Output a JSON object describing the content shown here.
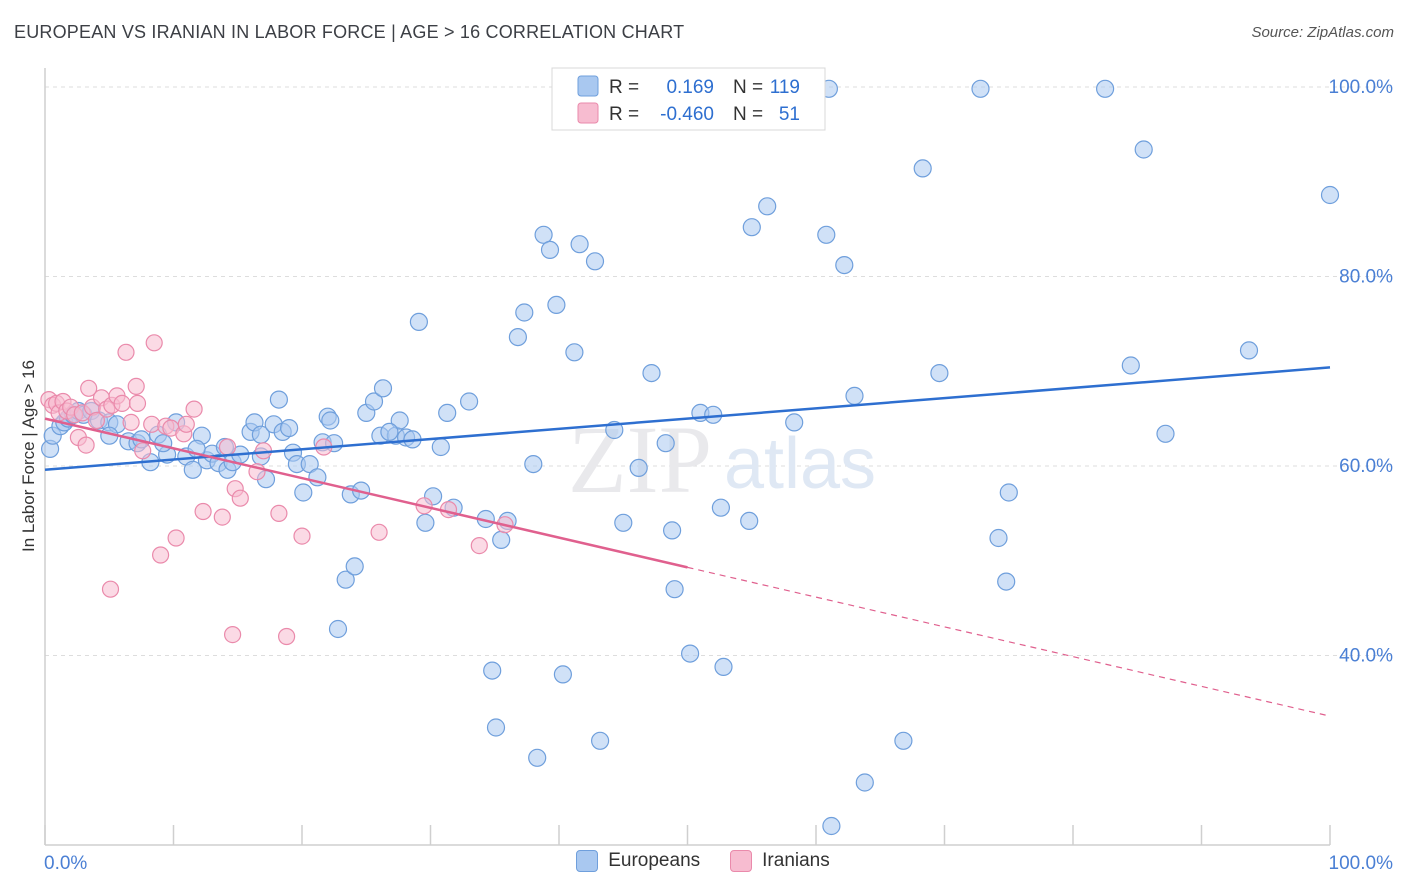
{
  "header": {
    "title": "EUROPEAN VS IRANIAN IN LABOR FORCE | AGE > 16 CORRELATION CHART",
    "source": "Source: ZipAtlas.com"
  },
  "watermark": {
    "zip": "ZIP",
    "atlas": "atlas"
  },
  "colors": {
    "blue_fill": "#a9c8f0",
    "blue_stroke": "#6f9fdc",
    "blue_line": "#2e6fd0",
    "pink_fill": "#f7bcd0",
    "pink_stroke": "#ea8aab",
    "pink_line": "#e0608e",
    "axis_label": "#4a7fd4",
    "grid": "#dddddd"
  },
  "legend_top": {
    "rows": [
      {
        "r_label": "R =",
        "r_value": "0.169",
        "n_label": "N =",
        "n_value": "119"
      },
      {
        "r_label": "R =",
        "r_value": "-0.460",
        "n_label": "N =",
        "n_value": "51"
      }
    ]
  },
  "legend_bottom": {
    "items": [
      "Europeans",
      "Iranians"
    ]
  },
  "chart_data": {
    "type": "scatter",
    "title": "EUROPEAN VS IRANIAN IN LABOR FORCE | AGE > 16 CORRELATION CHART",
    "xlabel": "",
    "ylabel": "In Labor Force | Age > 16",
    "xlim": [
      0,
      100
    ],
    "ylim": [
      20,
      102
    ],
    "x_tick_labels": [
      "0.0%",
      "100.0%"
    ],
    "y_ticks": [
      40,
      60,
      80,
      100
    ],
    "y_tick_labels": [
      "40.0%",
      "60.0%",
      "80.0%",
      "100.0%"
    ],
    "series": [
      {
        "name": "Europeans",
        "R": 0.169,
        "N": 119,
        "trend": {
          "x": [
            0,
            100
          ],
          "y": [
            59.6,
            70.4
          ],
          "dashed_from": null
        },
        "points": [
          [
            0.4,
            61.8
          ],
          [
            0.6,
            63.2
          ],
          [
            1.2,
            64.2
          ],
          [
            1.5,
            64.6
          ],
          [
            1.8,
            65.0
          ],
          [
            2.2,
            65.4
          ],
          [
            2.6,
            65.8
          ],
          [
            3.0,
            65.4
          ],
          [
            3.6,
            65.8
          ],
          [
            4.2,
            64.8
          ],
          [
            5.0,
            64.6
          ],
          [
            5.6,
            64.4
          ],
          [
            6.5,
            62.6
          ],
          [
            7.2,
            62.4
          ],
          [
            8.2,
            60.4
          ],
          [
            8.8,
            63.3
          ],
          [
            9.5,
            61.2
          ],
          [
            10.2,
            64.6
          ],
          [
            11.0,
            61.0
          ],
          [
            11.5,
            59.6
          ],
          [
            12.2,
            63.2
          ],
          [
            12.6,
            60.6
          ],
          [
            13.0,
            61.3
          ],
          [
            13.5,
            60.3
          ],
          [
            14.2,
            59.6
          ],
          [
            14.6,
            60.4
          ],
          [
            15.2,
            61.2
          ],
          [
            16.0,
            63.6
          ],
          [
            16.3,
            64.6
          ],
          [
            16.8,
            63.3
          ],
          [
            17.2,
            58.6
          ],
          [
            17.8,
            64.4
          ],
          [
            18.5,
            63.6
          ],
          [
            18.2,
            67.0
          ],
          [
            19.3,
            61.4
          ],
          [
            19.6,
            60.2
          ],
          [
            20.1,
            57.2
          ],
          [
            20.6,
            60.2
          ],
          [
            21.2,
            58.8
          ],
          [
            21.6,
            62.5
          ],
          [
            22.0,
            65.2
          ],
          [
            22.5,
            62.4
          ],
          [
            22.8,
            42.8
          ],
          [
            23.4,
            48.0
          ],
          [
            23.8,
            57.0
          ],
          [
            24.1,
            49.4
          ],
          [
            24.6,
            57.4
          ],
          [
            25.0,
            65.6
          ],
          [
            25.6,
            66.8
          ],
          [
            26.1,
            63.2
          ],
          [
            26.3,
            68.2
          ],
          [
            27.3,
            63.2
          ],
          [
            27.6,
            64.8
          ],
          [
            28.1,
            63.0
          ],
          [
            28.6,
            62.8
          ],
          [
            29.1,
            75.2
          ],
          [
            29.6,
            54.0
          ],
          [
            30.2,
            56.8
          ],
          [
            30.8,
            62.0
          ],
          [
            31.3,
            65.6
          ],
          [
            31.8,
            55.6
          ],
          [
            33.0,
            66.8
          ],
          [
            34.3,
            54.4
          ],
          [
            34.8,
            38.4
          ],
          [
            35.1,
            32.4
          ],
          [
            35.5,
            52.2
          ],
          [
            36.0,
            54.2
          ],
          [
            36.8,
            73.6
          ],
          [
            37.3,
            76.2
          ],
          [
            38.0,
            60.2
          ],
          [
            38.3,
            29.2
          ],
          [
            38.8,
            84.4
          ],
          [
            39.3,
            82.8
          ],
          [
            39.8,
            77.0
          ],
          [
            40.3,
            38.0
          ],
          [
            41.2,
            72.0
          ],
          [
            41.6,
            83.4
          ],
          [
            42.8,
            81.6
          ],
          [
            43.2,
            31.0
          ],
          [
            44.3,
            63.8
          ],
          [
            45.0,
            54.0
          ],
          [
            46.2,
            59.8
          ],
          [
            47.2,
            69.8
          ],
          [
            48.3,
            62.4
          ],
          [
            48.8,
            53.2
          ],
          [
            49.0,
            47.0
          ],
          [
            50.2,
            40.2
          ],
          [
            51.0,
            65.6
          ],
          [
            52.0,
            65.4
          ],
          [
            52.6,
            55.6
          ],
          [
            52.8,
            38.8
          ],
          [
            54.8,
            54.2
          ],
          [
            55.0,
            85.2
          ],
          [
            56.2,
            87.4
          ],
          [
            58.3,
            64.6
          ],
          [
            60.8,
            84.4
          ],
          [
            61.2,
            22.0
          ],
          [
            62.2,
            81.2
          ],
          [
            63.0,
            67.4
          ],
          [
            63.8,
            26.6
          ],
          [
            66.8,
            31.0
          ],
          [
            68.3,
            91.4
          ],
          [
            69.6,
            69.8
          ],
          [
            74.2,
            52.4
          ],
          [
            74.8,
            47.8
          ],
          [
            75.0,
            57.2
          ],
          [
            61.0,
            99.8
          ],
          [
            72.8,
            99.8
          ],
          [
            82.5,
            99.8
          ],
          [
            85.5,
            93.4
          ],
          [
            84.5,
            70.6
          ],
          [
            87.2,
            63.4
          ],
          [
            93.7,
            72.2
          ],
          [
            100.0,
            88.6
          ],
          [
            5.0,
            63.2
          ],
          [
            7.5,
            62.8
          ],
          [
            14.0,
            62.0
          ],
          [
            19.0,
            64.0
          ],
          [
            22.2,
            64.8
          ],
          [
            16.8,
            61.0
          ],
          [
            9.2,
            62.4
          ],
          [
            11.8,
            61.8
          ],
          [
            26.8,
            63.6
          ]
        ]
      },
      {
        "name": "Iranians",
        "R": -0.46,
        "N": 51,
        "trend": {
          "x": [
            0,
            100
          ],
          "y": [
            65.0,
            33.6
          ],
          "dashed_from": 50
        },
        "points": [
          [
            0.3,
            67.0
          ],
          [
            0.6,
            66.4
          ],
          [
            0.9,
            66.6
          ],
          [
            1.1,
            65.6
          ],
          [
            1.4,
            66.8
          ],
          [
            1.7,
            65.8
          ],
          [
            2.0,
            66.2
          ],
          [
            2.3,
            65.4
          ],
          [
            2.6,
            63.0
          ],
          [
            2.9,
            65.6
          ],
          [
            3.2,
            62.2
          ],
          [
            3.4,
            68.2
          ],
          [
            3.7,
            66.2
          ],
          [
            4.0,
            64.8
          ],
          [
            4.4,
            67.2
          ],
          [
            4.8,
            66.0
          ],
          [
            5.2,
            66.4
          ],
          [
            5.1,
            47.0
          ],
          [
            5.6,
            67.4
          ],
          [
            6.0,
            66.6
          ],
          [
            6.3,
            72.0
          ],
          [
            6.7,
            64.6
          ],
          [
            7.1,
            68.4
          ],
          [
            7.2,
            66.6
          ],
          [
            7.6,
            61.6
          ],
          [
            8.3,
            64.4
          ],
          [
            8.5,
            73.0
          ],
          [
            9.0,
            50.6
          ],
          [
            9.4,
            64.2
          ],
          [
            9.8,
            64.0
          ],
          [
            10.2,
            52.4
          ],
          [
            10.8,
            63.4
          ],
          [
            11.0,
            64.4
          ],
          [
            11.6,
            66.0
          ],
          [
            12.3,
            55.2
          ],
          [
            13.8,
            54.6
          ],
          [
            14.2,
            62.0
          ],
          [
            14.6,
            42.2
          ],
          [
            14.8,
            57.6
          ],
          [
            15.2,
            56.6
          ],
          [
            16.5,
            59.4
          ],
          [
            17.0,
            61.6
          ],
          [
            18.2,
            55.0
          ],
          [
            18.8,
            42.0
          ],
          [
            20.0,
            52.6
          ],
          [
            21.7,
            62.0
          ],
          [
            26.0,
            53.0
          ],
          [
            29.5,
            55.8
          ],
          [
            31.4,
            55.4
          ],
          [
            33.8,
            51.6
          ],
          [
            35.8,
            53.8
          ]
        ]
      }
    ]
  }
}
